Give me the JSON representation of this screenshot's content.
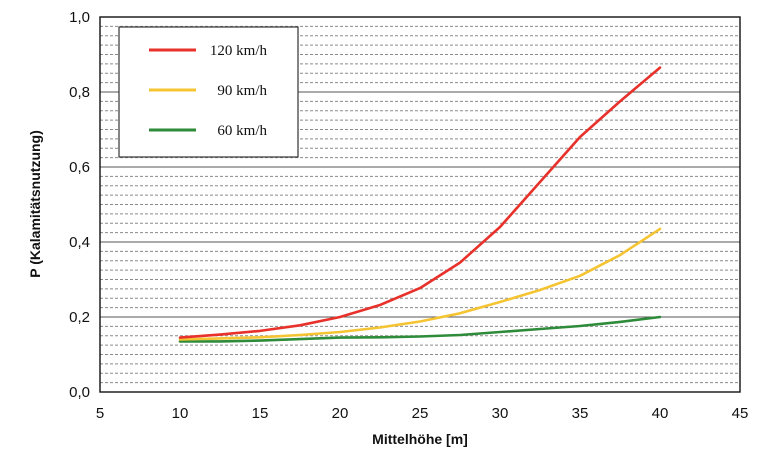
{
  "chart_data": {
    "type": "line",
    "xlabel": "Mittelhöhe [m]",
    "ylabel": "P (Kalamitätsnutzung)",
    "xlim": [
      5,
      45
    ],
    "ylim": [
      0,
      1
    ],
    "x_ticks": [
      "5",
      "10",
      "15",
      "20",
      "25",
      "30",
      "35",
      "40",
      "45"
    ],
    "y_ticks": [
      "0,0",
      "0,2",
      "0,4",
      "0,6",
      "0,8",
      "1,0"
    ],
    "grid": "major solid, minor dashed",
    "legend_position": "top-left",
    "series": [
      {
        "name": "120 km/h",
        "color": "#e8312a",
        "x": [
          10,
          12.5,
          15,
          17.5,
          20,
          22.5,
          25,
          27.5,
          30,
          32.5,
          35,
          37.5,
          40
        ],
        "y": [
          0.145,
          0.153,
          0.163,
          0.178,
          0.2,
          0.232,
          0.277,
          0.345,
          0.44,
          0.56,
          0.68,
          0.775,
          0.865
        ]
      },
      {
        "name": "90 km/h",
        "color": "#f5c432",
        "x": [
          10,
          12.5,
          15,
          17.5,
          20,
          22.5,
          25,
          27.5,
          30,
          32.5,
          35,
          37.5,
          40
        ],
        "y": [
          0.14,
          0.143,
          0.146,
          0.152,
          0.16,
          0.172,
          0.188,
          0.21,
          0.24,
          0.272,
          0.31,
          0.365,
          0.435
        ]
      },
      {
        "name": "60 km/h",
        "color": "#2e8b3a",
        "x": [
          10,
          12.5,
          15,
          17.5,
          20,
          22.5,
          25,
          27.5,
          30,
          32.5,
          35,
          37.5,
          40
        ],
        "y": [
          0.135,
          0.135,
          0.137,
          0.141,
          0.145,
          0.146,
          0.148,
          0.152,
          0.16,
          0.168,
          0.176,
          0.187,
          0.2
        ]
      }
    ]
  }
}
